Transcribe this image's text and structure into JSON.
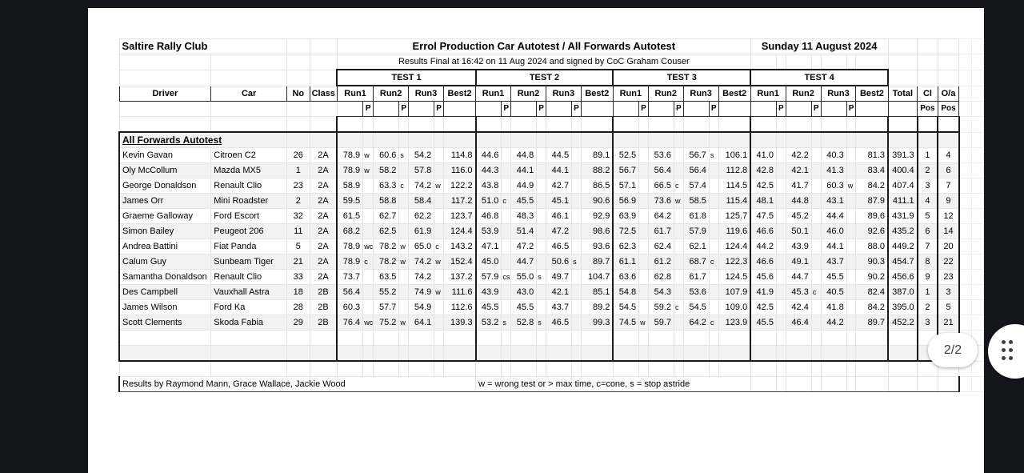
{
  "page": {
    "club": "Saltire Rally Club",
    "event_title": "Errol Production Car Autotest / All Forwards Autotest",
    "event_date": "Sunday 11 August 2024",
    "status_line": "Results Final at 16:42 on 11 Aug 2024 and signed by CoC Graham Couser"
  },
  "table": {
    "left_headers": [
      "Driver",
      "Car",
      "No",
      "Class"
    ],
    "test_groups": [
      "TEST 1",
      "TEST 2",
      "TEST 3",
      "TEST 4"
    ],
    "run_headers": [
      "Run1",
      "Run2",
      "Run3",
      "Best2"
    ],
    "penalty_label": "P",
    "summary_headers": [
      "Total",
      "Cl",
      "O/a"
    ],
    "pos_label": "Pos",
    "section_title": "All Forwards Autotest",
    "rows": [
      {
        "driver": "Kevin Gavan",
        "car": "Citroen C2",
        "no": "26",
        "cls": "2A",
        "tests": [
          [
            "78.9",
            "w",
            "60.6",
            "s",
            "54.2",
            "",
            "114.8"
          ],
          [
            "44.6",
            "",
            "44.8",
            "",
            "44.5",
            "",
            "89.1"
          ],
          [
            "52.5",
            "",
            "53.6",
            "",
            "56.7",
            "s",
            "106.1"
          ],
          [
            "41.0",
            "",
            "42.2",
            "",
            "40.3",
            "",
            "81.3"
          ]
        ],
        "total": "391.3",
        "cl": "1",
        "oa": "4"
      },
      {
        "driver": "Oly McCollum",
        "car": "Mazda MX5",
        "no": "1",
        "cls": "2A",
        "tests": [
          [
            "78.9",
            "w",
            "58.2",
            "",
            "57.8",
            "",
            "116.0"
          ],
          [
            "44.3",
            "",
            "44.1",
            "",
            "44.1",
            "",
            "88.2"
          ],
          [
            "56.7",
            "",
            "56.4",
            "",
            "56.4",
            "",
            "112.8"
          ],
          [
            "42.8",
            "",
            "42.1",
            "",
            "41.3",
            "",
            "83.4"
          ]
        ],
        "total": "400.4",
        "cl": "2",
        "oa": "6"
      },
      {
        "driver": "George Donaldson",
        "car": "Renault Clio",
        "no": "23",
        "cls": "2A",
        "tests": [
          [
            "58.9",
            "",
            "63.3",
            "c",
            "74.2",
            "w",
            "122.2"
          ],
          [
            "43.8",
            "",
            "44.9",
            "",
            "42.7",
            "",
            "86.5"
          ],
          [
            "57.1",
            "",
            "66.5",
            "c",
            "57.4",
            "",
            "114.5"
          ],
          [
            "42.5",
            "",
            "41.7",
            "",
            "60.3",
            "w",
            "84.2"
          ]
        ],
        "total": "407.4",
        "cl": "3",
        "oa": "7"
      },
      {
        "driver": "James Orr",
        "car": "Mini Roadster",
        "no": "2",
        "cls": "2A",
        "tests": [
          [
            "59.5",
            "",
            "58.8",
            "",
            "58.4",
            "",
            "117.2"
          ],
          [
            "51.0",
            "c",
            "45.5",
            "",
            "45.1",
            "",
            "90.6"
          ],
          [
            "56.9",
            "",
            "73.6",
            "w",
            "58.5",
            "",
            "115.4"
          ],
          [
            "48.1",
            "",
            "44.8",
            "",
            "43.1",
            "",
            "87.9"
          ]
        ],
        "total": "411.1",
        "cl": "4",
        "oa": "9"
      },
      {
        "driver": "Graeme Galloway",
        "car": "Ford Escort",
        "no": "32",
        "cls": "2A",
        "tests": [
          [
            "61.5",
            "",
            "62.7",
            "",
            "62.2",
            "",
            "123.7"
          ],
          [
            "46.8",
            "",
            "48.3",
            "",
            "46.1",
            "",
            "92.9"
          ],
          [
            "63.9",
            "",
            "64.2",
            "",
            "61.8",
            "",
            "125.7"
          ],
          [
            "47.5",
            "",
            "45.2",
            "",
            "44.4",
            "",
            "89.6"
          ]
        ],
        "total": "431.9",
        "cl": "5",
        "oa": "12"
      },
      {
        "driver": "Simon Bailey",
        "car": "Peugeot 206",
        "no": "11",
        "cls": "2A",
        "tests": [
          [
            "68.2",
            "",
            "62.5",
            "",
            "61.9",
            "",
            "124.4"
          ],
          [
            "53.9",
            "",
            "51.4",
            "",
            "47.2",
            "",
            "98.6"
          ],
          [
            "72.5",
            "",
            "61.7",
            "",
            "57.9",
            "",
            "119.6"
          ],
          [
            "46.6",
            "",
            "50.1",
            "",
            "46.0",
            "",
            "92.6"
          ]
        ],
        "total": "435.2",
        "cl": "6",
        "oa": "14"
      },
      {
        "driver": "Andrea Battini",
        "car": "Fiat Panda",
        "no": "5",
        "cls": "2A",
        "tests": [
          [
            "78.9",
            "wc",
            "78.2",
            "w",
            "65.0",
            "c",
            "143.2"
          ],
          [
            "47.1",
            "",
            "47.2",
            "",
            "46.5",
            "",
            "93.6"
          ],
          [
            "62.3",
            "",
            "62.4",
            "",
            "62.1",
            "",
            "124.4"
          ],
          [
            "44.2",
            "",
            "43.9",
            "",
            "44.1",
            "",
            "88.0"
          ]
        ],
        "total": "449.2",
        "cl": "7",
        "oa": "20"
      },
      {
        "driver": "Calum Guy",
        "car": "Sunbeam Tiger",
        "no": "21",
        "cls": "2A",
        "tests": [
          [
            "78.9",
            "c",
            "78.2",
            "w",
            "74.2",
            "w",
            "152.4"
          ],
          [
            "45.0",
            "",
            "44.7",
            "",
            "50.6",
            "s",
            "89.7"
          ],
          [
            "61.1",
            "",
            "61.2",
            "",
            "68.7",
            "c",
            "122.3"
          ],
          [
            "46.6",
            "",
            "49.1",
            "",
            "43.7",
            "",
            "90.3"
          ]
        ],
        "total": "454.7",
        "cl": "8",
        "oa": "22"
      },
      {
        "driver": "Samantha Donaldson",
        "car": "Renault Clio",
        "no": "33",
        "cls": "2A",
        "tests": [
          [
            "73.7",
            "",
            "63.5",
            "",
            "74.2",
            "",
            "137.2"
          ],
          [
            "57.9",
            "cs",
            "55.0",
            "s",
            "49.7",
            "",
            "104.7"
          ],
          [
            "63.6",
            "",
            "62.8",
            "",
            "61.7",
            "",
            "124.5"
          ],
          [
            "45.6",
            "",
            "44.7",
            "",
            "45.5",
            "",
            "90.2"
          ]
        ],
        "total": "456.6",
        "cl": "9",
        "oa": "23"
      },
      {
        "driver": "Des Campbell",
        "car": "Vauxhall Astra",
        "no": "18",
        "cls": "2B",
        "tests": [
          [
            "56.4",
            "",
            "55.2",
            "",
            "74.9",
            "w",
            "111.6"
          ],
          [
            "43.9",
            "",
            "43.0",
            "",
            "42.1",
            "",
            "85.1"
          ],
          [
            "54.8",
            "",
            "54.3",
            "",
            "53.6",
            "",
            "107.9"
          ],
          [
            "41.9",
            "",
            "45.3",
            "c",
            "40.5",
            "",
            "82.4"
          ]
        ],
        "total": "387.0",
        "cl": "1",
        "oa": "3"
      },
      {
        "driver": "James Wilson",
        "car": "Ford Ka",
        "no": "28",
        "cls": "2B",
        "tests": [
          [
            "60.3",
            "",
            "57.7",
            "",
            "54.9",
            "",
            "112.6"
          ],
          [
            "45.5",
            "",
            "45.5",
            "",
            "43.7",
            "",
            "89.2"
          ],
          [
            "54.5",
            "",
            "59.2",
            "c",
            "54.5",
            "",
            "109.0"
          ],
          [
            "42.5",
            "",
            "42.4",
            "",
            "41.8",
            "",
            "84.2"
          ]
        ],
        "total": "395.0",
        "cl": "2",
        "oa": "5"
      },
      {
        "driver": "Scott Clements",
        "car": "Skoda Fabia",
        "no": "29",
        "cls": "2B",
        "tests": [
          [
            "76.4",
            "wc",
            "75.2",
            "w",
            "64.1",
            "",
            "139.3"
          ],
          [
            "53.2",
            "s",
            "52.8",
            "s",
            "46.5",
            "",
            "99.3"
          ],
          [
            "74.5",
            "w",
            "59.7",
            "",
            "64.2",
            "c",
            "123.9"
          ],
          [
            "45.5",
            "",
            "46.4",
            "",
            "44.2",
            "",
            "89.7"
          ]
        ],
        "total": "452.2",
        "cl": "3",
        "oa": "21"
      }
    ]
  },
  "footer": {
    "credits": "Results by Raymond Mann, Grace Wallace, Jackie Wood",
    "legend": "w = wrong test or > max time,  c=cone, s = stop astride"
  },
  "overlay": {
    "page_indicator": "2/2"
  },
  "colors": {
    "canvas_bg": "#13161b",
    "page_bg": "#ffffff",
    "row_band": "#f2f2f2",
    "grid_line": "#e4e4e4",
    "heavy_border": "#1a1a1a"
  }
}
